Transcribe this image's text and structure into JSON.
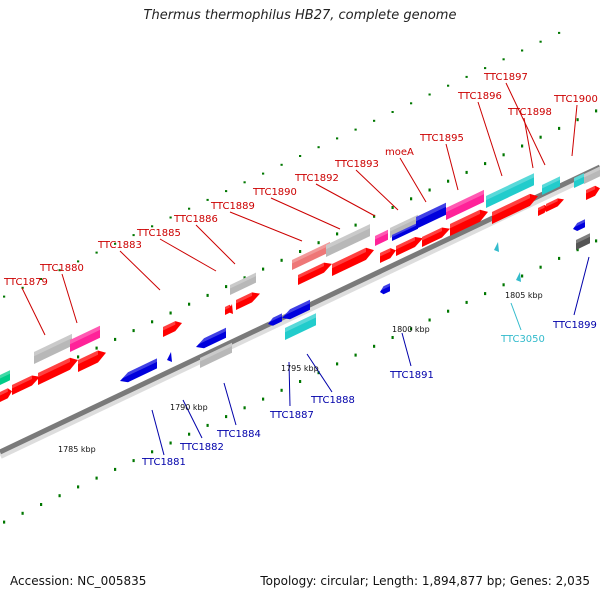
{
  "title": "Thermus thermophilus HB27, complete genome",
  "footer": {
    "accession": "Accession: NC_005835",
    "summary": "Topology: circular; Length: 1,894,877 bp; Genes: 2,035"
  },
  "colors": {
    "forward_label": "#cc0000",
    "reverse_label": "#0000aa",
    "rna_label": "#33bbcc",
    "red": "#ff0000",
    "blue": "#0000dd",
    "gray": "#b8b8b8",
    "pink": "#ff2299",
    "teal": "#22cccc",
    "salmon": "#ee7777",
    "darkgray": "#555555",
    "green": "#00cc88",
    "dot": "#007700"
  },
  "scale_labels": [
    "1785 kbp",
    "1790 kbp",
    "1795 kbp",
    "1800 kbp",
    "1805 kbp"
  ],
  "upper_labels": [
    "TTC1879",
    "TTC1880",
    "TTC1883",
    "TTC1885",
    "TTC1886",
    "TTC1889",
    "TTC1890",
    "TTC1892",
    "TTC1893",
    "moeA",
    "TTC1895",
    "TTC1896",
    "TTC1897",
    "TTC1898",
    "TTC1900"
  ],
  "lower_labels": [
    "TTC1881",
    "TTC1882",
    "TTC1884",
    "TTC1887",
    "TTC1888",
    "TTC1891",
    "TTC3050",
    "TTC1899"
  ]
}
